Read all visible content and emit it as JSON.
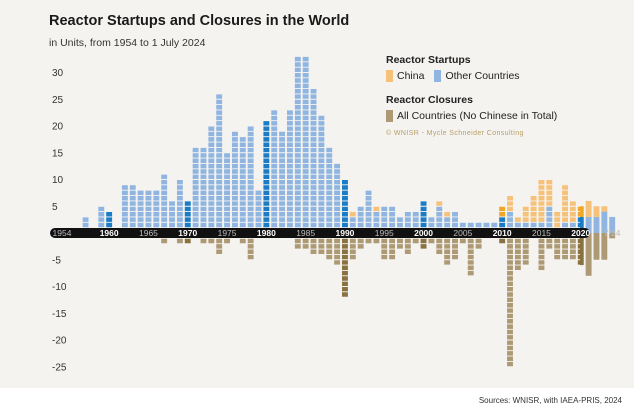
{
  "colors": {
    "china": "#f6c27a",
    "other_light": "#8fb5e0",
    "other_dark": "#1a7cc6",
    "closures_light": "#ad9a75",
    "closures_dark": "#8a7240",
    "china_dark": "#f0a626",
    "axis_band": "#111111",
    "background": "#f5f3f0"
  },
  "header": {
    "title": "Reactor Startups and Closures in the World",
    "subtitle": "in Units, from 1954 to 1 July 2024"
  },
  "legend": {
    "startups_heading": "Reactor Startups",
    "china_label": "China",
    "other_label": "Other Countries",
    "closures_heading": "Reactor Closures",
    "closures_label": "All Countries (No Chinese in Total)"
  },
  "copyright": "© WNISR - Mycle Schneider Consulting",
  "source": "Sources: WNISR, with IAEA-PRIS, 2024",
  "chart_data": {
    "type": "bar",
    "title": "Reactor Startups and Closures in the World",
    "subtitle": "in Units, from 1954 to 1 July 2024",
    "years": [
      1954,
      1955,
      1956,
      1957,
      1958,
      1959,
      1960,
      1961,
      1962,
      1963,
      1964,
      1965,
      1966,
      1967,
      1968,
      1969,
      1970,
      1971,
      1972,
      1973,
      1974,
      1975,
      1976,
      1977,
      1978,
      1979,
      1980,
      1981,
      1982,
      1983,
      1984,
      1985,
      1986,
      1987,
      1988,
      1989,
      1990,
      1991,
      1992,
      1993,
      1994,
      1995,
      1996,
      1997,
      1998,
      1999,
      2000,
      2001,
      2002,
      2003,
      2004,
      2005,
      2006,
      2007,
      2008,
      2009,
      2010,
      2011,
      2012,
      2013,
      2014,
      2015,
      2016,
      2017,
      2018,
      2019,
      2020,
      2021,
      2022,
      2023,
      2024
    ],
    "year_tick_labels": [
      "1954",
      "1960",
      "1965",
      "1970",
      "1975",
      "1980",
      "1985",
      "1990",
      "1995",
      "2000",
      "2005",
      "2010",
      "2015",
      "2020",
      "7/24"
    ],
    "year_tick_values": [
      1954,
      1960,
      1965,
      1970,
      1975,
      1980,
      1985,
      1990,
      1995,
      2000,
      2005,
      2010,
      2015,
      2020,
      2024
    ],
    "bold_tick_values": [
      1960,
      1970,
      1980,
      1990,
      2000,
      2010,
      2020
    ],
    "y_axis_ticks": [
      30,
      25,
      20,
      15,
      10,
      5,
      -5,
      -10,
      -15,
      -20,
      -25
    ],
    "ylim": [
      -27,
      33
    ],
    "series": [
      {
        "name": "China (Reactor Startups)",
        "values": [
          0,
          0,
          0,
          0,
          0,
          0,
          0,
          0,
          0,
          0,
          0,
          0,
          0,
          0,
          0,
          0,
          0,
          0,
          0,
          0,
          0,
          0,
          0,
          0,
          0,
          0,
          0,
          0,
          0,
          0,
          0,
          0,
          0,
          0,
          0,
          0,
          0,
          1,
          0,
          0,
          1,
          0,
          0,
          0,
          0,
          0,
          0,
          0,
          1,
          1,
          0,
          0,
          0,
          0,
          0,
          0,
          2,
          3,
          1,
          3,
          5,
          8,
          5,
          3,
          7,
          4,
          2,
          3,
          2,
          1,
          0
        ]
      },
      {
        "name": "Other Countries (Reactor Startups)",
        "values": [
          1,
          0,
          1,
          3,
          1,
          5,
          4,
          1,
          9,
          9,
          8,
          8,
          8,
          11,
          6,
          10,
          6,
          16,
          16,
          20,
          26,
          15,
          19,
          18,
          20,
          8,
          21,
          23,
          19,
          23,
          33,
          33,
          27,
          22,
          16,
          13,
          10,
          3,
          5,
          8,
          4,
          5,
          5,
          3,
          4,
          4,
          6,
          3,
          5,
          3,
          4,
          2,
          2,
          2,
          2,
          2,
          3,
          4,
          2,
          2,
          2,
          2,
          5,
          1,
          2,
          2,
          3,
          3,
          3,
          4,
          3
        ]
      },
      {
        "name": "All Countries (Reactor Closures)",
        "values": [
          0,
          0,
          0,
          0,
          0,
          0,
          0,
          0,
          0,
          0,
          0,
          -1,
          -1,
          -2,
          -1,
          -2,
          -2,
          -1,
          -2,
          -2,
          -4,
          -2,
          -1,
          -2,
          -5,
          -1,
          -1,
          -1,
          -1,
          -1,
          -3,
          -3,
          -4,
          -4,
          -5,
          -6,
          -12,
          -5,
          -3,
          -2,
          -2,
          -5,
          -5,
          -3,
          -4,
          -2,
          -3,
          -2,
          -4,
          -6,
          -5,
          -2,
          -8,
          -3,
          -1,
          -1,
          -2,
          -25,
          -7,
          -6,
          -1,
          -7,
          -3,
          -5,
          -5,
          -5,
          -6,
          -8,
          -5,
          -5,
          -1
        ]
      }
    ],
    "highlighted_years": [
      1960,
      1970,
      1980,
      1990,
      2000,
      2010,
      2020
    ]
  }
}
